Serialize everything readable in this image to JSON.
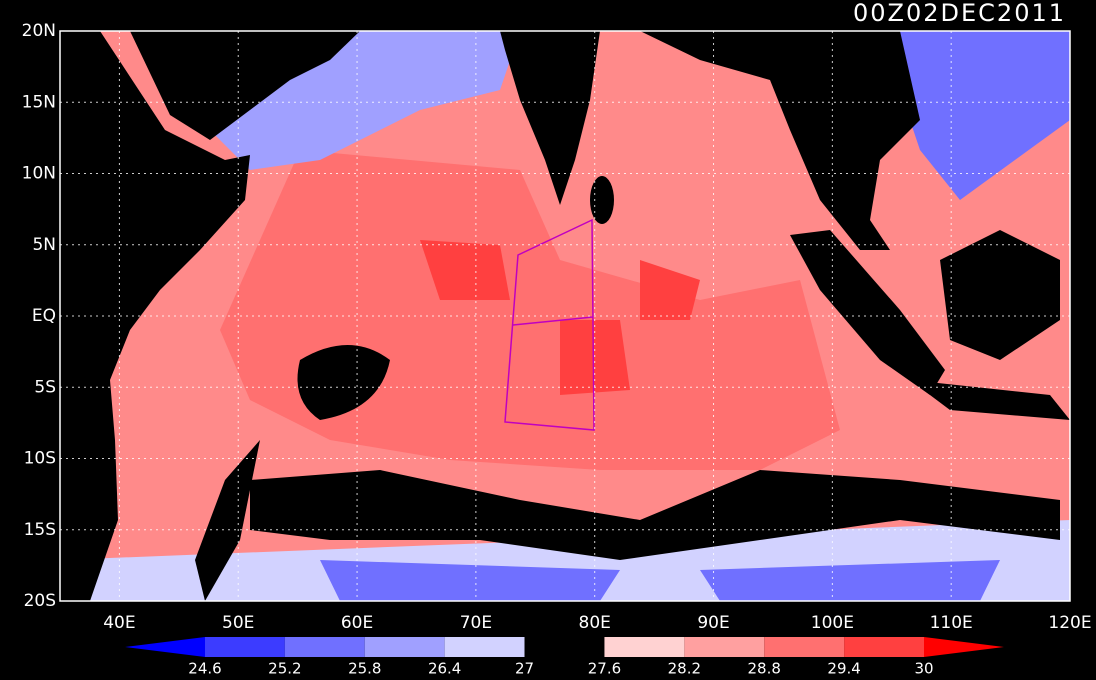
{
  "title": "00Z02DEC2011",
  "lat_labels": [
    "20N",
    "15N",
    "10N",
    "5N",
    "EQ",
    "5S",
    "10S",
    "15S",
    "20S"
  ],
  "lon_labels": [
    "40E",
    "50E",
    "60E",
    "70E",
    "80E",
    "90E",
    "100E",
    "110E",
    "120E"
  ],
  "colorbar": {
    "levels": [
      24.6,
      25.2,
      25.8,
      26.4,
      27,
      27.6,
      28.2,
      28.8,
      29.4,
      30
    ],
    "colors": [
      "#0000ff",
      "#3c3cff",
      "#7070ff",
      "#a0a0ff",
      "#d2d2ff",
      "#000000",
      "#ffd2d2",
      "#ffa0a0",
      "#ff7070",
      "#ff4040",
      "#ff0000"
    ]
  }
}
